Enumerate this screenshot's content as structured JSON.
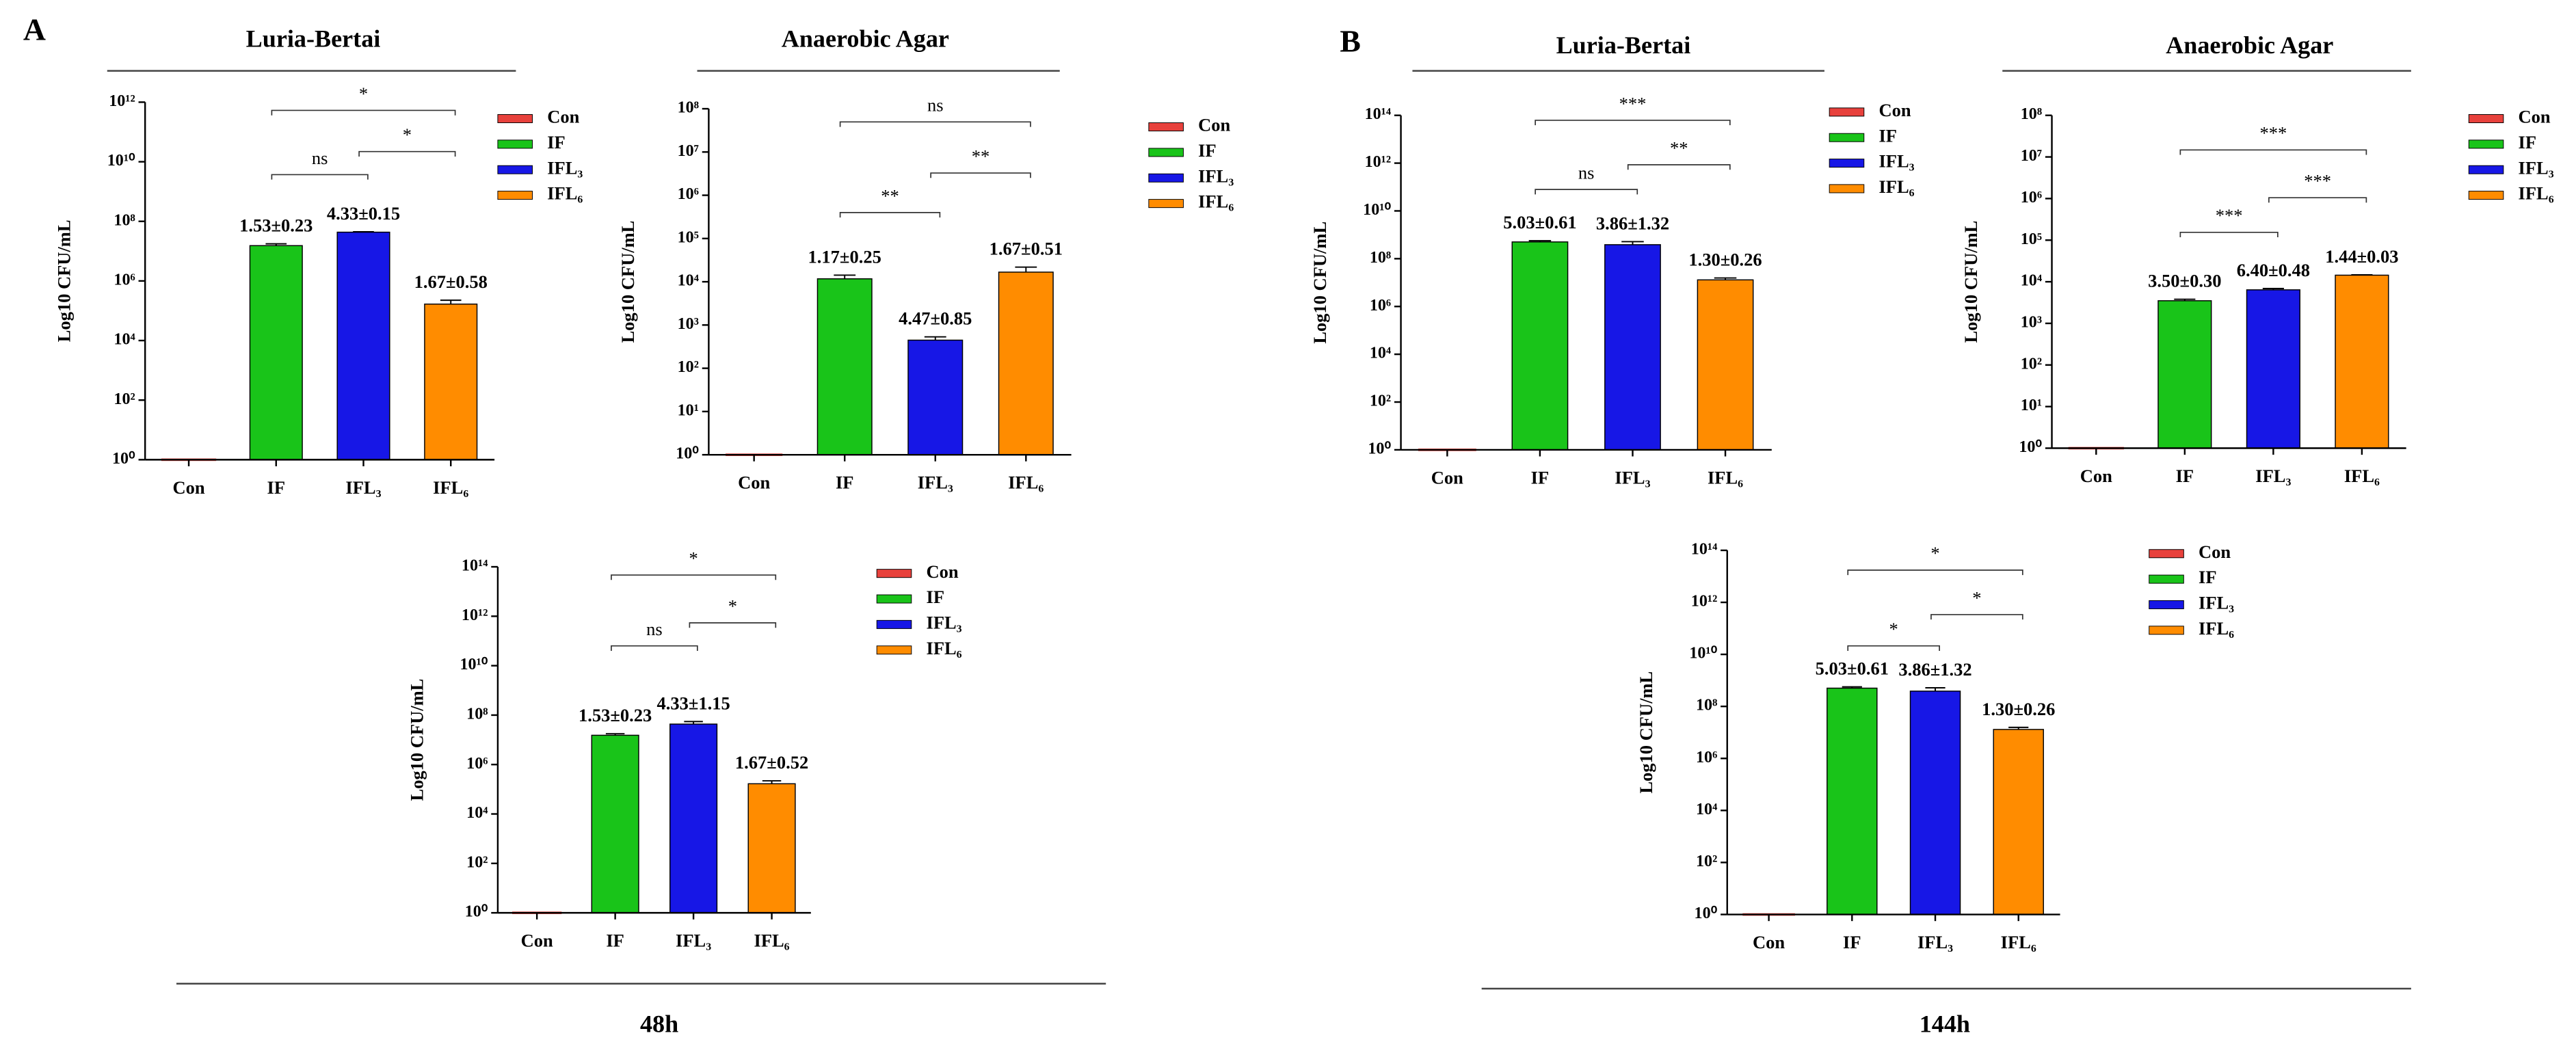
{
  "panels": [
    {
      "label": "A",
      "caption": "48h"
    },
    {
      "label": "B",
      "caption": "144h"
    }
  ],
  "chart_data": [
    {
      "type": "bar",
      "title": "Luria-Bertai",
      "y_label": "Log10 CFU/mL",
      "log_scale": true,
      "categories": [
        "Con",
        "IF",
        "IFL₃",
        "IFL₆"
      ],
      "colors": [
        "#e8413c",
        "#19c419",
        "#1717e6",
        "#ff8c00"
      ],
      "values": [
        1,
        15300000,
        43300000,
        167000
      ],
      "errors": [
        null,
        2300000,
        1500000,
        58000
      ],
      "value_labels": [
        null,
        "1.53±0.23",
        "4.33±0.15",
        "1.67±0.58"
      ],
      "ylim": [
        1,
        1000000000000.0
      ],
      "yticks": [
        {
          "value": 1,
          "label": "10⁰"
        },
        {
          "value": 100,
          "label": "10²"
        },
        {
          "value": 10000,
          "label": "10⁴"
        },
        {
          "value": 1000000.0,
          "label": "10⁶"
        },
        {
          "value": 100000000.0,
          "label": "10⁸"
        },
        {
          "value": 10000000000.0,
          "label": "10¹⁰"
        },
        {
          "value": 1000000000000.0,
          "label": "10¹²"
        }
      ],
      "comparisons": [
        {
          "from": 1,
          "to": 2,
          "label": "ns"
        },
        {
          "from": 2,
          "to": 3,
          "label": "*"
        },
        {
          "from": 1,
          "to": 3,
          "label": "*"
        }
      ]
    },
    {
      "type": "bar",
      "title": "Anaerobic Agar",
      "y_label": "Log10 CFU/mL",
      "log_scale": true,
      "categories": [
        "Con",
        "IF",
        "IFL₃",
        "IFL₆"
      ],
      "colors": [
        "#e8413c",
        "#19c419",
        "#1717e6",
        "#ff8c00"
      ],
      "values": [
        1,
        11700,
        447,
        16700
      ],
      "errors": [
        null,
        2500,
        85,
        5100
      ],
      "value_labels": [
        null,
        "1.17±0.25",
        "4.47±0.85",
        "1.67±0.51"
      ],
      "ylim": [
        1,
        100000000.0
      ],
      "yticks": [
        {
          "value": 1,
          "label": "10⁰"
        },
        {
          "value": 10,
          "label": "10¹"
        },
        {
          "value": 100,
          "label": "10²"
        },
        {
          "value": 1000,
          "label": "10³"
        },
        {
          "value": 10000,
          "label": "10⁴"
        },
        {
          "value": 100000,
          "label": "10⁵"
        },
        {
          "value": 1000000.0,
          "label": "10⁶"
        },
        {
          "value": 10000000.0,
          "label": "10⁷"
        },
        {
          "value": 100000000.0,
          "label": "10⁸"
        }
      ],
      "comparisons": [
        {
          "from": 1,
          "to": 2,
          "label": "**"
        },
        {
          "from": 2,
          "to": 3,
          "label": "**"
        },
        {
          "from": 1,
          "to": 3,
          "label": "ns"
        }
      ]
    },
    {
      "type": "bar",
      "y_label": "Log10 CFU/mL",
      "log_scale": true,
      "categories": [
        "Con",
        "IF",
        "IFL₃",
        "IFL₆"
      ],
      "colors": [
        "#e8413c",
        "#19c419",
        "#1717e6",
        "#ff8c00"
      ],
      "values": [
        1,
        15300000,
        43300000,
        167000
      ],
      "errors": [
        null,
        2300000,
        11500000,
        52000
      ],
      "value_labels": [
        null,
        "1.53±0.23",
        "4.33±1.15",
        "1.67±0.52"
      ],
      "ylim": [
        1,
        100000000000000.0
      ],
      "yticks": [
        {
          "value": 1,
          "label": "10⁰"
        },
        {
          "value": 100,
          "label": "10²"
        },
        {
          "value": 10000,
          "label": "10⁴"
        },
        {
          "value": 1000000.0,
          "label": "10⁶"
        },
        {
          "value": 100000000.0,
          "label": "10⁸"
        },
        {
          "value": 10000000000.0,
          "label": "10¹⁰"
        },
        {
          "value": 1000000000000.0,
          "label": "10¹²"
        },
        {
          "value": 100000000000000.0,
          "label": "10¹⁴"
        }
      ],
      "comparisons": [
        {
          "from": 1,
          "to": 2,
          "label": "ns"
        },
        {
          "from": 2,
          "to": 3,
          "label": "*"
        },
        {
          "from": 1,
          "to": 3,
          "label": "*"
        }
      ]
    },
    {
      "type": "bar",
      "title": "Luria-Bertai",
      "y_label": "Log10 CFU/mL",
      "log_scale": true,
      "categories": [
        "Con",
        "IF",
        "IFL₃",
        "IFL₆"
      ],
      "colors": [
        "#e8413c",
        "#19c419",
        "#1717e6",
        "#ff8c00"
      ],
      "values": [
        1,
        503000000,
        386000000,
        13000000
      ],
      "errors": [
        null,
        61000000,
        132000000,
        2600000
      ],
      "value_labels": [
        null,
        "5.03±0.61",
        "3.86±1.32",
        "1.30±0.26"
      ],
      "ylim": [
        1,
        100000000000000.0
      ],
      "yticks": [
        {
          "value": 1,
          "label": "10⁰"
        },
        {
          "value": 100,
          "label": "10²"
        },
        {
          "value": 10000,
          "label": "10⁴"
        },
        {
          "value": 1000000.0,
          "label": "10⁶"
        },
        {
          "value": 100000000.0,
          "label": "10⁸"
        },
        {
          "value": 10000000000.0,
          "label": "10¹⁰"
        },
        {
          "value": 1000000000000.0,
          "label": "10¹²"
        },
        {
          "value": 100000000000000.0,
          "label": "10¹⁴"
        }
      ],
      "comparisons": [
        {
          "from": 1,
          "to": 2,
          "label": "ns"
        },
        {
          "from": 2,
          "to": 3,
          "label": "**"
        },
        {
          "from": 1,
          "to": 3,
          "label": "***"
        }
      ]
    },
    {
      "type": "bar",
      "title": "Anaerobic Agar",
      "y_label": "Log10 CFU/mL",
      "log_scale": true,
      "categories": [
        "Con",
        "IF",
        "IFL₃",
        "IFL₆"
      ],
      "colors": [
        "#e8413c",
        "#19c419",
        "#1717e6",
        "#ff8c00"
      ],
      "values": [
        1,
        3500,
        6400,
        14400
      ],
      "errors": [
        null,
        300,
        480,
        300
      ],
      "value_labels": [
        null,
        "3.50±0.30",
        "6.40±0.48",
        "1.44±0.03"
      ],
      "ylim": [
        1,
        100000000.0
      ],
      "yticks": [
        {
          "value": 1,
          "label": "10⁰"
        },
        {
          "value": 10,
          "label": "10¹"
        },
        {
          "value": 100,
          "label": "10²"
        },
        {
          "value": 1000,
          "label": "10³"
        },
        {
          "value": 10000,
          "label": "10⁴"
        },
        {
          "value": 100000,
          "label": "10⁵"
        },
        {
          "value": 1000000.0,
          "label": "10⁶"
        },
        {
          "value": 10000000.0,
          "label": "10⁷"
        },
        {
          "value": 100000000.0,
          "label": "10⁸"
        }
      ],
      "comparisons": [
        {
          "from": 1,
          "to": 2,
          "label": "***"
        },
        {
          "from": 2,
          "to": 3,
          "label": "***"
        },
        {
          "from": 1,
          "to": 3,
          "label": "***"
        }
      ]
    },
    {
      "type": "bar",
      "y_label": "Log10 CFU/mL",
      "log_scale": true,
      "categories": [
        "Con",
        "IF",
        "IFL₃",
        "IFL₆"
      ],
      "colors": [
        "#e8413c",
        "#19c419",
        "#1717e6",
        "#ff8c00"
      ],
      "values": [
        1,
        503000000,
        386000000,
        13000000
      ],
      "errors": [
        null,
        61000000,
        132000000,
        2600000
      ],
      "value_labels": [
        null,
        "5.03±0.61",
        "3.86±1.32",
        "1.30±0.26"
      ],
      "ylim": [
        1,
        100000000000000.0
      ],
      "yticks": [
        {
          "value": 1,
          "label": "10⁰"
        },
        {
          "value": 100,
          "label": "10²"
        },
        {
          "value": 10000,
          "label": "10⁴"
        },
        {
          "value": 1000000.0,
          "label": "10⁶"
        },
        {
          "value": 100000000.0,
          "label": "10⁸"
        },
        {
          "value": 10000000000.0,
          "label": "10¹⁰"
        },
        {
          "value": 1000000000000.0,
          "label": "10¹²"
        },
        {
          "value": 100000000000000.0,
          "label": "10¹⁴"
        }
      ],
      "comparisons": [
        {
          "from": 1,
          "to": 2,
          "label": "*"
        },
        {
          "from": 2,
          "to": 3,
          "label": "*"
        },
        {
          "from": 1,
          "to": 3,
          "label": "*"
        }
      ]
    }
  ]
}
